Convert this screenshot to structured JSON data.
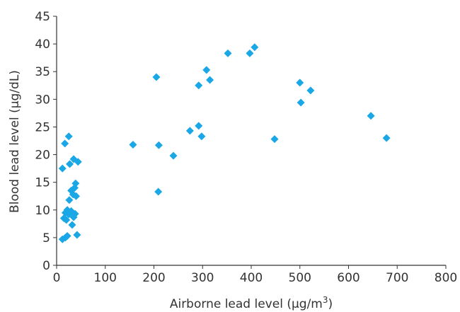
{
  "chart_data": {
    "type": "scatter",
    "title": "",
    "xlabel": "Airborne lead level (µg/m",
    "xlabel_sup": "3",
    "xlabel_close": ")",
    "ylabel": "Blood lead level (µg/dL)",
    "xlim": [
      0,
      800
    ],
    "ylim": [
      0,
      45
    ],
    "xticks": [
      "0",
      "100",
      "200",
      "300",
      "400",
      "500",
      "600",
      "700",
      "800"
    ],
    "yticks": [
      "0",
      "5",
      "10",
      "15",
      "20",
      "25",
      "30",
      "35",
      "40",
      "45"
    ],
    "grid": false,
    "legend": "none",
    "marker": "diamond",
    "marker_color": "#1aa7e6",
    "series": [
      {
        "points": [
          [
            12,
            4.7
          ],
          [
            18,
            5.0
          ],
          [
            22,
            5.3
          ],
          [
            42,
            5.5
          ],
          [
            32,
            7.3
          ],
          [
            15,
            8.5
          ],
          [
            20,
            8.2
          ],
          [
            35,
            8.7
          ],
          [
            18,
            9.5
          ],
          [
            25,
            9.2
          ],
          [
            30,
            9.8
          ],
          [
            38,
            9.3
          ],
          [
            22,
            10.0
          ],
          [
            26,
            11.8
          ],
          [
            40,
            12.5
          ],
          [
            34,
            12.8
          ],
          [
            30,
            13.5
          ],
          [
            37,
            14.0
          ],
          [
            39,
            14.8
          ],
          [
            12,
            17.5
          ],
          [
            27,
            18.3
          ],
          [
            35,
            19.2
          ],
          [
            44,
            18.7
          ],
          [
            17,
            22.0
          ],
          [
            25,
            23.3
          ],
          [
            157,
            21.8
          ],
          [
            210,
            21.7
          ],
          [
            240,
            19.8
          ],
          [
            209,
            13.3
          ],
          [
            205,
            34.0
          ],
          [
            274,
            24.3
          ],
          [
            292,
            25.2
          ],
          [
            298,
            23.3
          ],
          [
            292,
            32.5
          ],
          [
            308,
            35.3
          ],
          [
            315,
            33.5
          ],
          [
            352,
            38.3
          ],
          [
            397,
            38.3
          ],
          [
            407,
            39.4
          ],
          [
            448,
            22.8
          ],
          [
            500,
            33.0
          ],
          [
            502,
            29.4
          ],
          [
            522,
            31.6
          ],
          [
            646,
            27.0
          ],
          [
            678,
            23.0
          ]
        ]
      }
    ]
  }
}
